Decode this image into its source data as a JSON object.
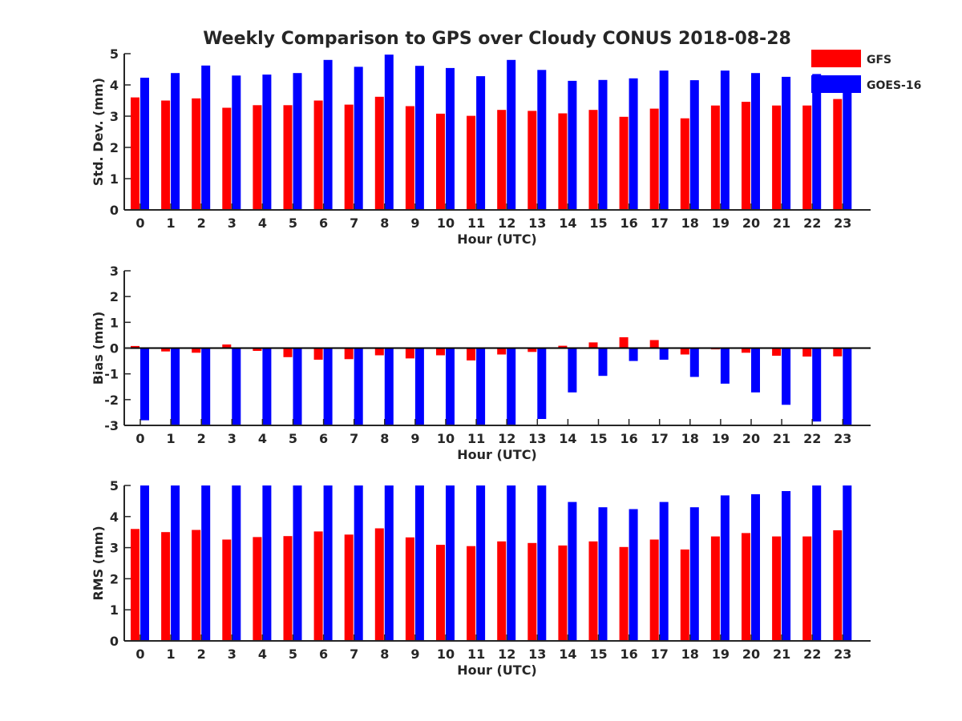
{
  "title": "Weekly Comparison to GPS over Cloudy CONUS 2018-08-28",
  "legend": {
    "placement": "top-right",
    "items": [
      {
        "label": "GFS",
        "color": "#ff0000"
      },
      {
        "label": "GOES-16",
        "color": "#0000ff"
      }
    ]
  },
  "chart_data": [
    {
      "type": "bar",
      "categories": [
        "0",
        "1",
        "2",
        "3",
        "4",
        "5",
        "6",
        "7",
        "8",
        "9",
        "10",
        "11",
        "12",
        "13",
        "14",
        "15",
        "16",
        "17",
        "18",
        "19",
        "20",
        "21",
        "22",
        "23"
      ],
      "xlabel": "Hour (UTC)",
      "ylabel": "Std. Dev. (mm)",
      "ylim": [
        0,
        5
      ],
      "yticks": [
        "0",
        "1",
        "2",
        "3",
        "4",
        "5"
      ],
      "series": [
        {
          "name": "GFS",
          "color": "#ff0000",
          "values": [
            3.6,
            3.5,
            3.57,
            3.27,
            3.35,
            3.35,
            3.5,
            3.37,
            3.62,
            3.32,
            3.08,
            3.01,
            3.2,
            3.17,
            3.09,
            3.2,
            2.98,
            3.24,
            2.93,
            3.34,
            3.46,
            3.34,
            3.34,
            3.55
          ]
        },
        {
          "name": "GOES-16",
          "color": "#0000ff",
          "values": [
            4.23,
            4.38,
            4.62,
            4.3,
            4.33,
            4.38,
            4.8,
            4.58,
            4.97,
            4.61,
            4.54,
            4.28,
            4.8,
            4.48,
            4.13,
            4.16,
            4.21,
            4.46,
            4.15,
            4.46,
            4.38,
            4.26,
            4.35,
            4.1
          ]
        }
      ]
    },
    {
      "type": "bar",
      "categories": [
        "0",
        "1",
        "2",
        "3",
        "4",
        "5",
        "6",
        "7",
        "8",
        "9",
        "10",
        "11",
        "12",
        "13",
        "14",
        "15",
        "16",
        "17",
        "18",
        "19",
        "20",
        "21",
        "22",
        "23"
      ],
      "xlabel": "Hour (UTC)",
      "ylabel": "Bias (mm)",
      "ylim": [
        -3,
        3
      ],
      "yticks": [
        "-3",
        "-2",
        "-1",
        "0",
        "1",
        "2",
        "3"
      ],
      "zero_line": true,
      "series": [
        {
          "name": "GFS",
          "color": "#ff0000",
          "values": [
            0.08,
            -0.13,
            -0.18,
            0.14,
            -0.11,
            -0.35,
            -0.45,
            -0.43,
            -0.28,
            -0.4,
            -0.28,
            -0.48,
            -0.25,
            -0.15,
            0.09,
            0.22,
            0.42,
            0.31,
            -0.25,
            -0.05,
            -0.18,
            -0.3,
            -0.33,
            -0.32
          ]
        },
        {
          "name": "GOES-16",
          "color": "#0000ff",
          "values": [
            -2.8,
            -3.0,
            -3.0,
            -3.0,
            -3.0,
            -3.0,
            -3.0,
            -3.0,
            -3.0,
            -3.0,
            -3.0,
            -3.0,
            -3.0,
            -2.75,
            -1.72,
            -1.08,
            -0.5,
            -0.45,
            -1.12,
            -1.38,
            -1.72,
            -2.2,
            -2.85,
            -3.0
          ]
        }
      ]
    },
    {
      "type": "bar",
      "categories": [
        "0",
        "1",
        "2",
        "3",
        "4",
        "5",
        "6",
        "7",
        "8",
        "9",
        "10",
        "11",
        "12",
        "13",
        "14",
        "15",
        "16",
        "17",
        "18",
        "19",
        "20",
        "21",
        "22",
        "23"
      ],
      "xlabel": "Hour (UTC)",
      "ylabel": "RMS (mm)",
      "ylim": [
        0,
        5
      ],
      "yticks": [
        "0",
        "1",
        "2",
        "3",
        "4",
        "5"
      ],
      "series": [
        {
          "name": "GFS",
          "color": "#ff0000",
          "values": [
            3.6,
            3.5,
            3.57,
            3.26,
            3.34,
            3.37,
            3.52,
            3.42,
            3.62,
            3.33,
            3.09,
            3.05,
            3.2,
            3.15,
            3.07,
            3.2,
            3.02,
            3.26,
            2.94,
            3.36,
            3.47,
            3.36,
            3.36,
            3.56
          ]
        },
        {
          "name": "GOES-16",
          "color": "#0000ff",
          "values": [
            5,
            5,
            5,
            5,
            5,
            5,
            5,
            5,
            5,
            5,
            5,
            5,
            5,
            5,
            4.47,
            4.3,
            4.24,
            4.47,
            4.3,
            4.68,
            4.72,
            4.82,
            5,
            5
          ]
        }
      ]
    }
  ]
}
